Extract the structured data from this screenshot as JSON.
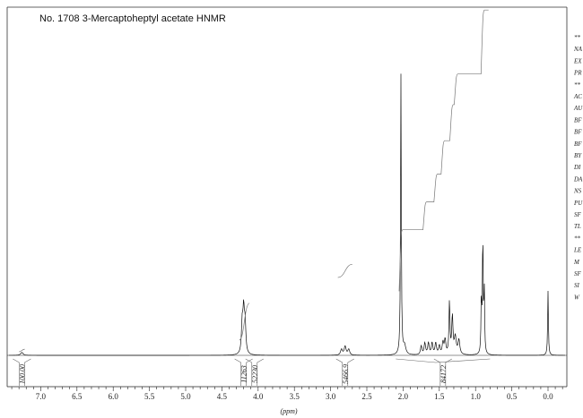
{
  "chart_data": {
    "type": "line",
    "title": "No. 1708 3-Mercaptoheptyl acetate HNMR",
    "xlabel": "(ppm)",
    "ylabel": "",
    "xlim": [
      7.5,
      -0.2
    ],
    "x_ticks": [
      "7.0",
      "6.5",
      "6.0",
      "5.5",
      "5.0",
      "4.5",
      "4.0",
      "3.5",
      "3.0",
      "2.5",
      "2.0",
      "1.5",
      "1.0",
      "0.5",
      "0.0"
    ],
    "grid": false,
    "peaks": [
      {
        "ppm": 7.26,
        "height": 0.01,
        "width": 0.02
      },
      {
        "ppm": 4.22,
        "height": 0.1,
        "width": 0.012
      },
      {
        "ppm": 4.2,
        "height": 0.14,
        "width": 0.012
      },
      {
        "ppm": 4.18,
        "height": 0.1,
        "width": 0.012
      },
      {
        "ppm": 2.85,
        "height": 0.02,
        "width": 0.015
      },
      {
        "ppm": 2.8,
        "height": 0.03,
        "width": 0.015
      },
      {
        "ppm": 2.75,
        "height": 0.02,
        "width": 0.015
      },
      {
        "ppm": 2.03,
        "height": 0.96,
        "width": 0.006
      },
      {
        "ppm": 1.98,
        "height": 0.03,
        "width": 0.02
      },
      {
        "ppm": 1.75,
        "height": 0.03,
        "width": 0.012
      },
      {
        "ppm": 1.7,
        "height": 0.04,
        "width": 0.012
      },
      {
        "ppm": 1.65,
        "height": 0.04,
        "width": 0.012
      },
      {
        "ppm": 1.6,
        "height": 0.04,
        "width": 0.012
      },
      {
        "ppm": 1.55,
        "height": 0.04,
        "width": 0.012
      },
      {
        "ppm": 1.5,
        "height": 0.03,
        "width": 0.012
      },
      {
        "ppm": 1.45,
        "height": 0.04,
        "width": 0.012
      },
      {
        "ppm": 1.42,
        "height": 0.05,
        "width": 0.012
      },
      {
        "ppm": 1.36,
        "height": 0.18,
        "width": 0.008
      },
      {
        "ppm": 1.32,
        "height": 0.13,
        "width": 0.01
      },
      {
        "ppm": 1.28,
        "height": 0.06,
        "width": 0.015
      },
      {
        "ppm": 1.23,
        "height": 0.05,
        "width": 0.015
      },
      {
        "ppm": 0.92,
        "height": 0.19,
        "width": 0.006
      },
      {
        "ppm": 0.9,
        "height": 0.41,
        "width": 0.006
      },
      {
        "ppm": 0.88,
        "height": 0.22,
        "width": 0.006
      },
      {
        "ppm": 0.0,
        "height": 0.22,
        "width": 0.006
      }
    ],
    "integration_curves": [
      {
        "start": 7.3,
        "end": 7.22,
        "rise": 0.01
      },
      {
        "start": 4.26,
        "end": 4.12,
        "rise": 0.14
      },
      {
        "start": 2.9,
        "end": 2.7,
        "rise": 0.05
      },
      {
        "start": 2.06,
        "end": 0.82,
        "steps": [
          {
            "at": 2.03,
            "rise": 0.22
          },
          {
            "at": 1.7,
            "rise": 0.1
          },
          {
            "at": 1.55,
            "rise": 0.1
          },
          {
            "at": 1.45,
            "rise": 0.12
          },
          {
            "at": 1.33,
            "rise": 0.13
          },
          {
            "at": 1.27,
            "rise": 0.11
          },
          {
            "at": 0.9,
            "rise": 0.23
          }
        ]
      }
    ],
    "integrations": [
      {
        "ppm": 7.26,
        "label": "100.00"
      },
      {
        "ppm": 4.2,
        "label": "11263"
      },
      {
        "ppm": 4.05,
        "label": "52230"
      },
      {
        "ppm": 2.8,
        "label": "5466.9"
      },
      {
        "ppm": 1.45,
        "label": "84172"
      }
    ],
    "params_fragments": [
      "**",
      "NA",
      "EX",
      "PR",
      "**",
      "AC",
      "AU",
      "BF",
      "BF",
      "BF",
      "BY",
      "DI",
      "DA",
      "NS",
      "PU",
      "SF",
      "TL",
      "**",
      "LE",
      "M",
      "SF",
      "SI",
      "W"
    ]
  }
}
